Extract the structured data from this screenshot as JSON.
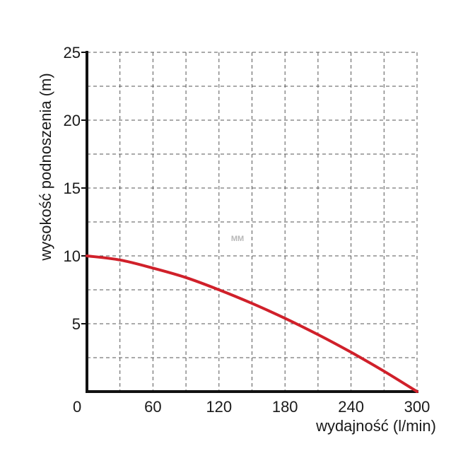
{
  "chart_data": {
    "type": "line",
    "xlabel": "wydajność (l/min)",
    "ylabel": "wysokość podnoszenia (m)",
    "xlim": [
      0,
      300
    ],
    "ylim": [
      0,
      25
    ],
    "x_ticks": [
      "0",
      "60",
      "120",
      "180",
      "240",
      "300"
    ],
    "y_ticks": [
      "5",
      "10",
      "15",
      "20",
      "25"
    ],
    "grid": true,
    "grid_style": "dashed",
    "watermark": "MM",
    "series": [
      {
        "color": "#d0202a",
        "x": [
          0,
          30,
          60,
          90,
          120,
          150,
          180,
          210,
          240,
          270,
          300
        ],
        "y": [
          10,
          9.7,
          9.1,
          8.4,
          7.5,
          6.5,
          5.4,
          4.2,
          2.9,
          1.5,
          0
        ]
      }
    ]
  }
}
